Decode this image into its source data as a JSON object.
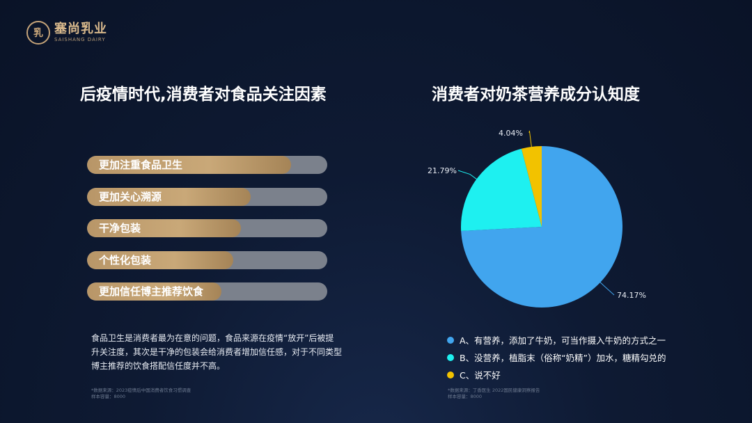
{
  "logo": {
    "brand_cn": "塞尚乳业",
    "brand_en": "SAISHANG DAIRY"
  },
  "left_panel": {
    "title": "后疫情时代,消费者对食品关注因素",
    "bars": [
      {
        "label": "更加注重食品卫生",
        "value": 0.85
      },
      {
        "label": "更加关心溯源",
        "value": 0.68
      },
      {
        "label": "干净包装",
        "value": 0.64
      },
      {
        "label": "个性化包装",
        "value": 0.61
      },
      {
        "label": "更加信任博主推荐饮食",
        "value": 0.56
      }
    ],
    "description": "食品卫生是消费者最为在意的问题，食品来源在疫情“放开”后被提升关注度，其次是干净的包装会给消费者增加信任感，对于不同类型博主推荐的饮食搭配信任度并不高。",
    "source_line1": "*数据来源：2023疫情后中国消费者饮食习惯调查",
    "source_line2": "  样本容量：8000"
  },
  "right_panel": {
    "title": "消费者对奶茶营养成分认知度",
    "source_line1": "*数据来源：丁香医生 2022国民健康洞察报告",
    "source_line2": "  样本容量：8000"
  },
  "colors": {
    "bar_fill": "#c9a878",
    "bar_track": "#7b818c",
    "accent_gold": "#d9b98c"
  },
  "chart_data": [
    {
      "type": "bar",
      "orientation": "horizontal",
      "title": "后疫情时代,消费者对食品关注因素",
      "categories": [
        "更加注重食品卫生",
        "更加关心溯源",
        "干净包装",
        "个性化包装",
        "更加信任博主推荐饮食"
      ],
      "values": [
        0.85,
        0.68,
        0.64,
        0.61,
        0.56
      ]
    },
    {
      "type": "pie",
      "title": "消费者对奶茶营养成分认知度",
      "legend_position": "bottom",
      "slices": [
        {
          "label": "A、有营养，添加了牛奶，可当作摄入牛奶的方式之一",
          "value": 74.17,
          "display": "74.17%",
          "color": "#41a5ee"
        },
        {
          "label": "B、没营养，植脂末（俗称“奶精”）加水，糖精勾兑的",
          "value": 21.79,
          "display": "21.79%",
          "color": "#1ef0f0"
        },
        {
          "label": "C、说不好",
          "value": 4.04,
          "display": "4.04%",
          "color": "#f2c200"
        }
      ]
    }
  ]
}
